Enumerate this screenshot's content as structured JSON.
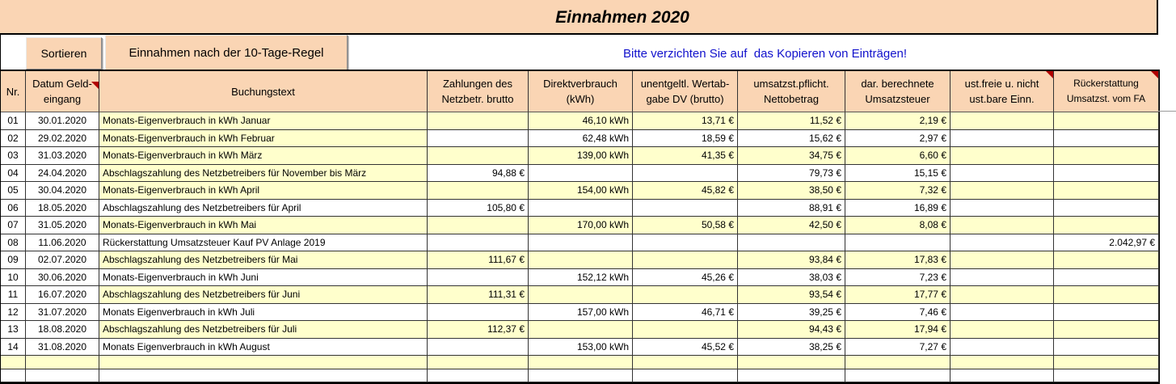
{
  "title": "Einnahmen 2020",
  "toolbar": {
    "sort_button": "Sortieren",
    "rule_button": "Einnahmen nach der 10-Tage-Regel",
    "notice": "Bitte verzichten Sie auf  das Kopieren von Einträgen!"
  },
  "table": {
    "headers": [
      {
        "line1": "Nr.",
        "line2": ""
      },
      {
        "line1": "Datum Geld-",
        "line2": "eingang",
        "marker": true
      },
      {
        "line1": "Buchungstext",
        "line2": ""
      },
      {
        "line1": "Zahlungen des",
        "line2": "Netzbetr. brutto"
      },
      {
        "line1": "Direktverbrauch",
        "line2": "(kWh)"
      },
      {
        "line1": "unentgeltl. Wertab-",
        "line2": "gabe DV (brutto)"
      },
      {
        "line1": "umsatzst.pflicht.",
        "line2": "Nettobetrag"
      },
      {
        "line1": "dar. berechnete",
        "line2": "Umsatzsteuer"
      },
      {
        "line1": "ust.freie u. nicht",
        "line2": "ust.bare Einn.",
        "marker": true
      },
      {
        "line1": "Rückerstattung",
        "line2": "Umsatzst. vom FA",
        "marker": true
      }
    ],
    "rows": [
      {
        "nr": "01",
        "datum": "30.01.2020",
        "text": "Monats-Eigenverbrauch in kWh Januar",
        "zahlung": "",
        "kwh": "46,10 kWh",
        "wertabgabe": "13,71 €",
        "netto": "11,52 €",
        "ust": "2,19 €",
        "ustfrei": "",
        "rueck": "",
        "highlight": "full"
      },
      {
        "nr": "02",
        "datum": "29.02.2020",
        "text": "Monats-Eigenverbrauch in kWh Februar",
        "zahlung": "",
        "kwh": "62,48 kWh",
        "wertabgabe": "18,59 €",
        "netto": "15,62 €",
        "ust": "2,97 €",
        "ustfrei": "",
        "rueck": "",
        "highlight": "text"
      },
      {
        "nr": "03",
        "datum": "31.03.2020",
        "text": "Monats-Eigenverbrauch in kWh März",
        "zahlung": "",
        "kwh": "139,00 kWh",
        "wertabgabe": "41,35 €",
        "netto": "34,75 €",
        "ust": "6,60 €",
        "ustfrei": "",
        "rueck": "",
        "highlight": "full"
      },
      {
        "nr": "04",
        "datum": "24.04.2020",
        "text": "Abschlagszahlung des Netzbetreibers für November bis März",
        "zahlung": "94,88 €",
        "kwh": "",
        "wertabgabe": "",
        "netto": "79,73 €",
        "ust": "15,15 €",
        "ustfrei": "",
        "rueck": "",
        "highlight": "text"
      },
      {
        "nr": "05",
        "datum": "30.04.2020",
        "text": "Monats-Eigenverbrauch in kWh April",
        "zahlung": "",
        "kwh": "154,00 kWh",
        "wertabgabe": "45,82 €",
        "netto": "38,50 €",
        "ust": "7,32 €",
        "ustfrei": "",
        "rueck": "",
        "highlight": "full"
      },
      {
        "nr": "06",
        "datum": "18.05.2020",
        "text": "Abschlagszahlung des Netzbetreibers für April",
        "zahlung": "105,80 €",
        "kwh": "",
        "wertabgabe": "",
        "netto": "88,91 €",
        "ust": "16,89 €",
        "ustfrei": "",
        "rueck": "",
        "highlight": "none"
      },
      {
        "nr": "07",
        "datum": "31.05.2020",
        "text": "Monats-Eigenverbrauch in kWh Mai",
        "zahlung": "",
        "kwh": "170,00 kWh",
        "wertabgabe": "50,58 €",
        "netto": "42,50 €",
        "ust": "8,08 €",
        "ustfrei": "",
        "rueck": "",
        "highlight": "full"
      },
      {
        "nr": "08",
        "datum": "11.06.2020",
        "text": "Rückerstattung Umsatzsteuer Kauf PV Anlage 2019",
        "zahlung": "",
        "kwh": "",
        "wertabgabe": "",
        "netto": "",
        "ust": "",
        "ustfrei": "",
        "rueck": "2.042,97 €",
        "highlight": "none"
      },
      {
        "nr": "09",
        "datum": "02.07.2020",
        "text": "Abschlagszahlung des Netzbetreibers für Mai",
        "zahlung": "111,67 €",
        "kwh": "",
        "wertabgabe": "",
        "netto": "93,84 €",
        "ust": "17,83 €",
        "ustfrei": "",
        "rueck": "",
        "highlight": "full"
      },
      {
        "nr": "10",
        "datum": "30.06.2020",
        "text": "Monats-Eigenverbrauch in kWh Juni",
        "zahlung": "",
        "kwh": "152,12 kWh",
        "wertabgabe": "45,26 €",
        "netto": "38,03 €",
        "ust": "7,23 €",
        "ustfrei": "",
        "rueck": "",
        "highlight": "none"
      },
      {
        "nr": "11",
        "datum": "16.07.2020",
        "text": "Abschlagszahlung des Netzbetreibers für Juni",
        "zahlung": "111,31 €",
        "kwh": "",
        "wertabgabe": "",
        "netto": "93,54 €",
        "ust": "17,77 €",
        "ustfrei": "",
        "rueck": "",
        "highlight": "full"
      },
      {
        "nr": "12",
        "datum": "31.07.2020",
        "text": "Monats Eigenverbrauch in kWh Juli",
        "zahlung": "",
        "kwh": "157,00 kWh",
        "wertabgabe": "46,71 €",
        "netto": "39,25 €",
        "ust": "7,46 €",
        "ustfrei": "",
        "rueck": "",
        "highlight": "none"
      },
      {
        "nr": "13",
        "datum": "18.08.2020",
        "text": "Abschlagszahlung des Netzbetreibers für Juli",
        "zahlung": "112,37 €",
        "kwh": "",
        "wertabgabe": "",
        "netto": "94,43 €",
        "ust": "17,94 €",
        "ustfrei": "",
        "rueck": "",
        "highlight": "full"
      },
      {
        "nr": "14",
        "datum": "31.08.2020",
        "text": "Monats Eigenverbrauch in kWh August",
        "zahlung": "",
        "kwh": "153,00 kWh",
        "wertabgabe": "45,52 €",
        "netto": "38,25 €",
        "ust": "7,27 €",
        "ustfrei": "",
        "rueck": "",
        "highlight": "none"
      }
    ]
  },
  "colors": {
    "band_peach": "#FAD5B4",
    "row_yellow": "#FFFFCC",
    "notice_blue": "#1111CC",
    "marker_red": "#B00000",
    "border_black": "#000000"
  }
}
